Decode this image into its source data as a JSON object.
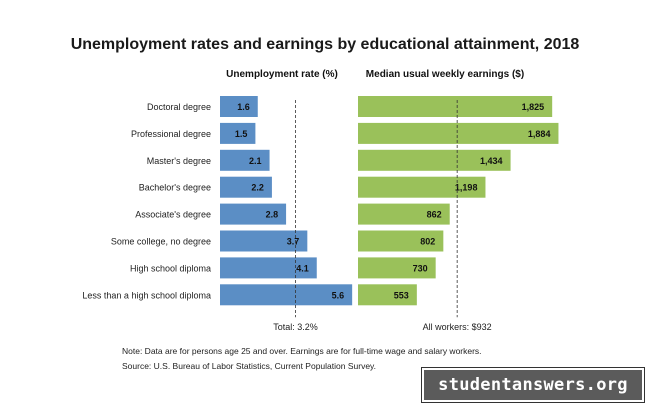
{
  "chart_data": {
    "type": "bar",
    "title": "Unemployment rates and earnings by educational attainment, 2018",
    "categories": [
      "Doctoral degree",
      "Professional degree",
      "Master's degree",
      "Bachelor's degree",
      "Associate's degree",
      "Some college, no degree",
      "High school diploma",
      "Less than a high school diploma"
    ],
    "series": [
      {
        "name": "Unemployment rate (%)",
        "values": [
          1.6,
          1.5,
          2.1,
          2.2,
          2.8,
          3.7,
          4.1,
          5.6
        ],
        "color": "#5b8ec5",
        "labels": [
          "1.6",
          "1.5",
          "2.1",
          "2.2",
          "2.8",
          "3.7",
          "4.1",
          "5.6"
        ],
        "reference": 3.2,
        "reference_label": "Total: 3.2%"
      },
      {
        "name": "Median usual weekly earnings ($)",
        "values": [
          1825,
          1884,
          1434,
          1198,
          862,
          802,
          730,
          553
        ],
        "color": "#9ac15a",
        "labels": [
          "1,825",
          "1,884",
          "1,434",
          "1,198",
          "862",
          "802",
          "730",
          "553"
        ],
        "reference": 932,
        "reference_label": "All workers: $932"
      }
    ],
    "grid": false,
    "legend": "none"
  },
  "notes": {
    "line1": "Note: Data are for persons age 25 and over. Earnings are for full-time wage and salary workers.",
    "line2": "Source: U.S. Bureau of Labor Statistics, Current Population Survey."
  },
  "watermark": "studentanswers.org"
}
